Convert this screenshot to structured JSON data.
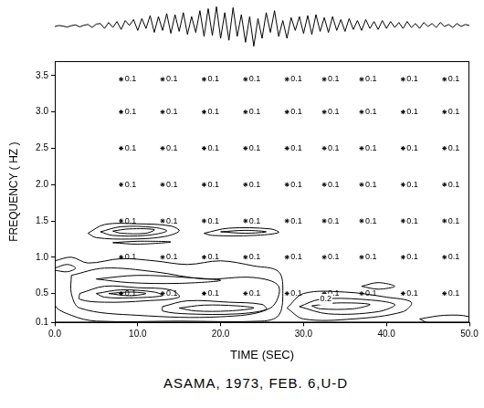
{
  "chart_data": [
    {
      "type": "line",
      "tick_labels": false,
      "color": "#000000",
      "xlim": [
        0,
        50
      ],
      "ylim": [
        -1.2,
        1.2
      ],
      "x": [
        0,
        0.5,
        1,
        1.5,
        2,
        2.5,
        3,
        3.5,
        4,
        4.5,
        5,
        5.5,
        6,
        6.5,
        7,
        7.5,
        8,
        8.5,
        9,
        9.5,
        10,
        10.5,
        11,
        11.5,
        12,
        12.5,
        13,
        13.5,
        14,
        14.5,
        15,
        15.5,
        16,
        16.5,
        17,
        17.5,
        18,
        18.5,
        19,
        19.5,
        20,
        20.5,
        21,
        21.5,
        22,
        22.5,
        23,
        23.5,
        24,
        24.5,
        25,
        25.5,
        26,
        26.5,
        27,
        27.5,
        28,
        28.5,
        29,
        29.5,
        30,
        30.5,
        31,
        31.5,
        32,
        32.5,
        33,
        33.5,
        34,
        34.5,
        35,
        35.5,
        36,
        36.5,
        37,
        37.5,
        38,
        38.5,
        39,
        39.5,
        40,
        40.5,
        41,
        41.5,
        42,
        42.5,
        43,
        43.5,
        44,
        44.5,
        45,
        45.5,
        46,
        46.5,
        47,
        47.5,
        48,
        48.5,
        49,
        49.5,
        50
      ],
      "values": [
        0,
        0.05,
        0.02,
        -0.03,
        0.04,
        0.08,
        -0.02,
        0.06,
        0.1,
        -0.05,
        0.12,
        0.15,
        -0.1,
        0.2,
        -0.05,
        0.25,
        -0.15,
        0.3,
        0.05,
        0.35,
        -0.2,
        0.4,
        -0.1,
        0.55,
        -0.3,
        0.5,
        -0.2,
        0.65,
        -0.35,
        0.6,
        -0.25,
        0.7,
        -0.4,
        0.5,
        -0.3,
        0.8,
        -0.5,
        0.9,
        -0.45,
        1.0,
        -0.6,
        0.7,
        -0.7,
        0.95,
        -0.5,
        0.6,
        -0.8,
        0.5,
        -1.0,
        0.4,
        -0.6,
        0.7,
        -0.3,
        0.8,
        -0.5,
        0.3,
        -0.6,
        0.45,
        -0.2,
        0.5,
        -0.35,
        0.55,
        -0.4,
        0.6,
        -0.25,
        0.45,
        -0.3,
        0.5,
        -0.2,
        0.35,
        -0.25,
        0.4,
        -0.15,
        0.3,
        -0.2,
        0.35,
        -0.1,
        0.25,
        -0.15,
        0.3,
        -0.1,
        0.25,
        -0.05,
        0.2,
        -0.1,
        0.25,
        -0.05,
        0.15,
        -0.1,
        0.2,
        0.0,
        0.15,
        -0.05,
        0.2,
        0.0,
        0.1,
        -0.05,
        0.15,
        0.0,
        0.1,
        0.05
      ]
    },
    {
      "type": "contour",
      "title": "ASAMA, 1973, FEB. 6,U-D",
      "xlabel": "TIME (SEC)",
      "ylabel": "FREQUENCY ( HZ )",
      "color": "#000000",
      "grid": false,
      "xlim": [
        0,
        50
      ],
      "ylim": [
        0.1,
        3.7
      ],
      "xticks": [
        {
          "value": 0,
          "label": "0.0"
        },
        {
          "value": 10,
          "label": "10.0"
        },
        {
          "value": 20,
          "label": "20.0"
        },
        {
          "value": 30,
          "label": "30.0"
        },
        {
          "value": 40,
          "label": "40.0"
        },
        {
          "value": 50,
          "label": "50.0"
        }
      ],
      "yticks": [
        0.1,
        0.5,
        {
          "value": 1,
          "label": "1.0"
        },
        1.5,
        {
          "value": 2,
          "label": "2.0"
        },
        2.5,
        {
          "value": 3,
          "label": "3.0"
        },
        3.5
      ],
      "markers": {
        "label": "0.1",
        "x": [
          8,
          13,
          18,
          23,
          28,
          32.5,
          37,
          42,
          47
        ],
        "y": [
          3.45,
          3.0,
          2.5,
          2.0,
          1.5,
          1.0,
          0.5
        ]
      },
      "contour_labels": [
        {
          "text": "0.2",
          "x": 32,
          "y": 0.42
        }
      ],
      "contours": [
        [
          [
            4,
            1.33
          ],
          [
            6,
            1.45
          ],
          [
            10,
            1.46
          ],
          [
            14,
            1.43
          ],
          [
            15,
            1.36
          ],
          [
            13,
            1.28
          ],
          [
            9,
            1.25
          ],
          [
            5,
            1.27
          ],
          [
            4,
            1.33
          ]
        ],
        [
          [
            5.5,
            1.35
          ],
          [
            8,
            1.42
          ],
          [
            12,
            1.41
          ],
          [
            13.5,
            1.36
          ],
          [
            11,
            1.3
          ],
          [
            7,
            1.3
          ],
          [
            5.5,
            1.35
          ]
        ],
        [
          [
            7,
            1.36
          ],
          [
            9,
            1.39
          ],
          [
            12,
            1.38
          ],
          [
            11,
            1.33
          ],
          [
            8,
            1.33
          ],
          [
            7,
            1.36
          ]
        ],
        [
          [
            7,
            1.2
          ],
          [
            10,
            1.22
          ],
          [
            14,
            1.21
          ],
          [
            10,
            1.18
          ],
          [
            7,
            1.2
          ]
        ],
        [
          [
            18,
            1.33
          ],
          [
            21,
            1.4
          ],
          [
            26,
            1.39
          ],
          [
            27,
            1.34
          ],
          [
            24,
            1.3
          ],
          [
            19,
            1.3
          ],
          [
            18,
            1.33
          ]
        ],
        [
          [
            20,
            1.35
          ],
          [
            23,
            1.37
          ],
          [
            25.5,
            1.35
          ],
          [
            23,
            1.33
          ],
          [
            20,
            1.35
          ]
        ],
        [
          [
            0,
            0.95
          ],
          [
            2,
            1.0
          ],
          [
            4,
            0.92
          ],
          [
            8,
            0.98
          ],
          [
            12,
            0.95
          ],
          [
            16,
            0.9
          ],
          [
            20,
            0.95
          ],
          [
            24,
            0.88
          ],
          [
            27,
            0.8
          ],
          [
            27.5,
            0.5
          ],
          [
            27,
            0.2
          ],
          [
            25,
            0.12
          ],
          [
            15,
            0.12
          ],
          [
            5,
            0.12
          ],
          [
            2,
            0.2
          ],
          [
            0,
            0.35
          ],
          [
            0,
            0.95
          ]
        ],
        [
          [
            0,
            0.85
          ],
          [
            1.5,
            0.9
          ],
          [
            2.5,
            0.85
          ],
          [
            1.5,
            0.8
          ],
          [
            0,
            0.82
          ]
        ],
        [
          [
            2,
            0.75
          ],
          [
            6,
            0.85
          ],
          [
            12,
            0.8
          ],
          [
            18,
            0.7
          ],
          [
            24,
            0.72
          ],
          [
            27,
            0.6
          ],
          [
            26,
            0.3
          ],
          [
            20,
            0.18
          ],
          [
            10,
            0.2
          ],
          [
            3,
            0.3
          ],
          [
            2,
            0.5
          ],
          [
            2,
            0.75
          ]
        ],
        [
          [
            5,
            0.7
          ],
          [
            10,
            0.75
          ],
          [
            16,
            0.72
          ],
          [
            20,
            0.68
          ],
          [
            15,
            0.64
          ],
          [
            9,
            0.65
          ],
          [
            5,
            0.7
          ]
        ],
        [
          [
            3,
            0.5
          ],
          [
            6,
            0.6
          ],
          [
            10,
            0.58
          ],
          [
            14,
            0.55
          ],
          [
            15,
            0.45
          ],
          [
            11,
            0.4
          ],
          [
            6,
            0.38
          ],
          [
            3,
            0.42
          ],
          [
            3,
            0.5
          ]
        ],
        [
          [
            5,
            0.5
          ],
          [
            8,
            0.55
          ],
          [
            12,
            0.52
          ],
          [
            13,
            0.47
          ],
          [
            9,
            0.44
          ],
          [
            6,
            0.45
          ],
          [
            5,
            0.5
          ]
        ],
        [
          [
            6.5,
            0.5
          ],
          [
            9,
            0.52
          ],
          [
            11,
            0.5
          ],
          [
            9,
            0.47
          ],
          [
            6.5,
            0.5
          ]
        ],
        [
          [
            13,
            0.32
          ],
          [
            16,
            0.4
          ],
          [
            21,
            0.38
          ],
          [
            25,
            0.35
          ],
          [
            25.5,
            0.28
          ],
          [
            22,
            0.22
          ],
          [
            16,
            0.22
          ],
          [
            13,
            0.26
          ],
          [
            13,
            0.32
          ]
        ],
        [
          [
            15,
            0.3
          ],
          [
            18,
            0.34
          ],
          [
            22,
            0.33
          ],
          [
            24,
            0.3
          ],
          [
            21,
            0.26
          ],
          [
            17,
            0.26
          ],
          [
            15,
            0.3
          ]
        ],
        [
          [
            28,
            0.3
          ],
          [
            30,
            0.5
          ],
          [
            35,
            0.52
          ],
          [
            40,
            0.45
          ],
          [
            43,
            0.38
          ],
          [
            42,
            0.25
          ],
          [
            36,
            0.15
          ],
          [
            30,
            0.15
          ],
          [
            28,
            0.3
          ]
        ],
        [
          [
            29.5,
            0.32
          ],
          [
            32,
            0.42
          ],
          [
            37,
            0.42
          ],
          [
            41,
            0.35
          ],
          [
            39,
            0.25
          ],
          [
            33,
            0.22
          ],
          [
            29.5,
            0.32
          ]
        ],
        [
          [
            31,
            0.33
          ],
          [
            34,
            0.37
          ],
          [
            38,
            0.35
          ],
          [
            36,
            0.29
          ],
          [
            32,
            0.29
          ],
          [
            31,
            0.33
          ]
        ],
        [
          [
            37,
            0.6
          ],
          [
            39,
            0.65
          ],
          [
            41,
            0.6
          ],
          [
            39,
            0.56
          ],
          [
            37,
            0.6
          ]
        ],
        [
          [
            44,
            0.15
          ],
          [
            47,
            0.2
          ],
          [
            50,
            0.18
          ],
          [
            50,
            0.1
          ],
          [
            45,
            0.1
          ],
          [
            44,
            0.15
          ]
        ]
      ]
    }
  ]
}
